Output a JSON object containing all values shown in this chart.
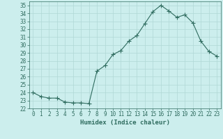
{
  "x": [
    0,
    1,
    2,
    3,
    4,
    5,
    6,
    7,
    8,
    9,
    10,
    11,
    12,
    13,
    14,
    15,
    16,
    17,
    18,
    19,
    20,
    21,
    22,
    23
  ],
  "y": [
    24,
    23.5,
    23.3,
    23.3,
    22.8,
    22.7,
    22.7,
    22.6,
    26.7,
    27.4,
    28.8,
    29.3,
    30.5,
    31.2,
    32.7,
    34.2,
    35.0,
    34.3,
    33.5,
    33.8,
    32.8,
    30.5,
    29.2,
    28.6
  ],
  "line_color": "#2e6b5e",
  "marker": "+",
  "marker_size": 4,
  "bg_color": "#cceeed",
  "grid_color": "#b0d8d5",
  "tick_color": "#2e6b5e",
  "xlabel": "Humidex (Indice chaleur)",
  "ylim": [
    22,
    35.5
  ],
  "xlim": [
    -0.5,
    23.5
  ],
  "yticks": [
    22,
    23,
    24,
    25,
    26,
    27,
    28,
    29,
    30,
    31,
    32,
    33,
    34,
    35
  ],
  "xticks": [
    0,
    1,
    2,
    3,
    4,
    5,
    6,
    7,
    8,
    9,
    10,
    11,
    12,
    13,
    14,
    15,
    16,
    17,
    18,
    19,
    20,
    21,
    22,
    23
  ],
  "label_fontsize": 6.5,
  "tick_fontsize": 5.5
}
